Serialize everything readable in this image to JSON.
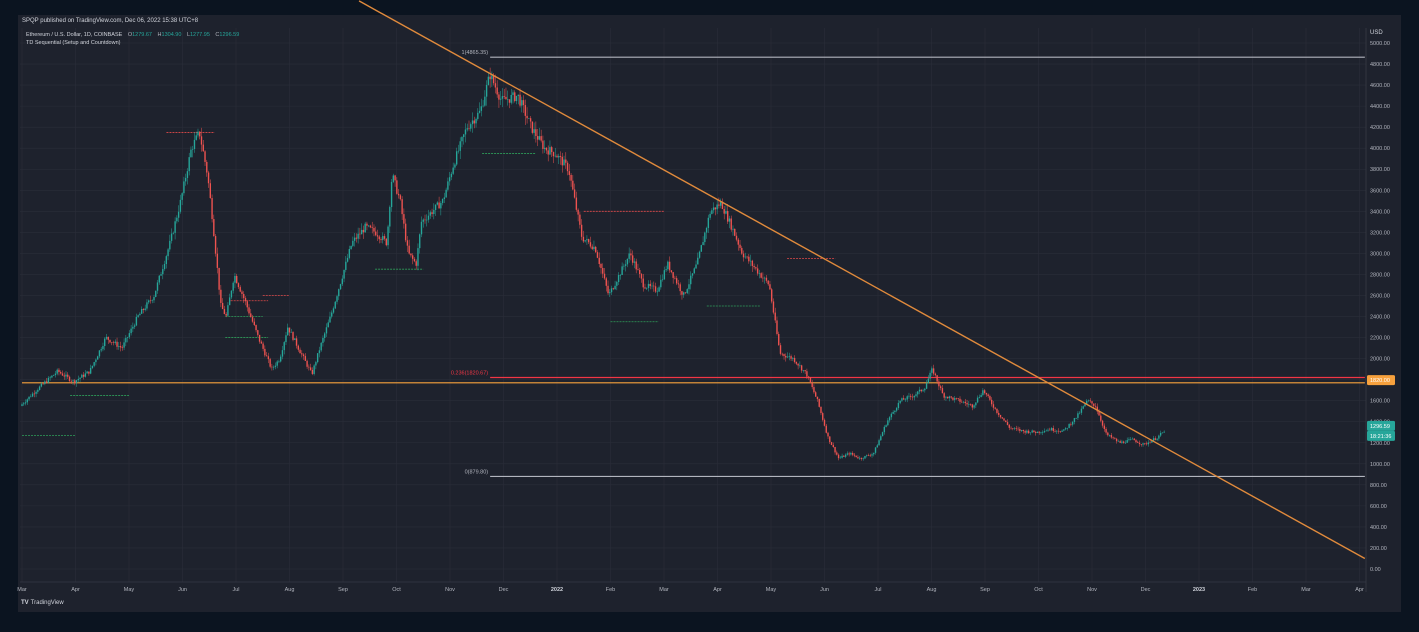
{
  "header": {
    "published": "SPQP published on TradingView.com, Dec 06, 2022 15:38 UTC+8",
    "symbol": "Ethereum / U.S. Dollar, 1D, COINBASE",
    "ohlc": [
      {
        "key": "O",
        "value": "1279.67"
      },
      {
        "key": "H",
        "value": "1304.90"
      },
      {
        "key": "L",
        "value": "1277.95"
      },
      {
        "key": "C",
        "value": "1296.59"
      }
    ],
    "indicator": "TD Sequential (Setup and Countdown)"
  },
  "footer": {
    "logo": "TV",
    "brand": "TradingView"
  },
  "chart_data": {
    "type": "candlestick",
    "currency": "USD",
    "ylim": [
      -100,
      5100
    ],
    "yticks": [
      "5000.00",
      "4800.00",
      "4600.00",
      "4400.00",
      "4200.00",
      "4000.00",
      "3800.00",
      "3600.00",
      "3400.00",
      "3200.00",
      "3000.00",
      "2800.00",
      "2600.00",
      "2400.00",
      "2200.00",
      "2000.00",
      "1800.00",
      "1600.00",
      "1400.00",
      "1200.00",
      "1000.00",
      "800.00",
      "600.00",
      "400.00",
      "200.00",
      "0.00"
    ],
    "xticks": [
      {
        "label": "Mar",
        "bold": false
      },
      {
        "label": "Apr",
        "bold": false
      },
      {
        "label": "May",
        "bold": false
      },
      {
        "label": "Jun",
        "bold": false
      },
      {
        "label": "Jul",
        "bold": false
      },
      {
        "label": "Aug",
        "bold": false
      },
      {
        "label": "Sep",
        "bold": false
      },
      {
        "label": "Oct",
        "bold": false
      },
      {
        "label": "Nov",
        "bold": false
      },
      {
        "label": "Dec",
        "bold": false
      },
      {
        "label": "2022",
        "bold": true
      },
      {
        "label": "Feb",
        "bold": false
      },
      {
        "label": "Mar",
        "bold": false
      },
      {
        "label": "Apr",
        "bold": false
      },
      {
        "label": "May",
        "bold": false
      },
      {
        "label": "Jun",
        "bold": false
      },
      {
        "label": "Jul",
        "bold": false
      },
      {
        "label": "Aug",
        "bold": false
      },
      {
        "label": "Sep",
        "bold": false
      },
      {
        "label": "Oct",
        "bold": false
      },
      {
        "label": "Nov",
        "bold": false
      },
      {
        "label": "Dec",
        "bold": false
      },
      {
        "label": "2023",
        "bold": true
      },
      {
        "label": "Feb",
        "bold": false
      },
      {
        "label": "Mar",
        "bold": false
      },
      {
        "label": "Apr",
        "bold": false
      }
    ],
    "price_path": [
      [
        0,
        1550
      ],
      [
        0.3,
        1700
      ],
      [
        0.7,
        1880
      ],
      [
        1.0,
        1780
      ],
      [
        1.3,
        1880
      ],
      [
        1.6,
        2200
      ],
      [
        1.9,
        2100
      ],
      [
        2.2,
        2400
      ],
      [
        2.5,
        2600
      ],
      [
        2.8,
        3100
      ],
      [
        3.0,
        3500
      ],
      [
        3.2,
        4000
      ],
      [
        3.35,
        4150
      ],
      [
        3.5,
        3750
      ],
      [
        3.6,
        3300
      ],
      [
        3.75,
        2500
      ],
      [
        3.85,
        2400
      ],
      [
        4.0,
        2800
      ],
      [
        4.2,
        2550
      ],
      [
        4.45,
        2200
      ],
      [
        4.7,
        1900
      ],
      [
        4.85,
        2000
      ],
      [
        5.0,
        2300
      ],
      [
        5.2,
        2100
      ],
      [
        5.45,
        1850
      ],
      [
        5.6,
        2100
      ],
      [
        5.8,
        2400
      ],
      [
        6.0,
        2750
      ],
      [
        6.2,
        3100
      ],
      [
        6.45,
        3250
      ],
      [
        6.65,
        3200
      ],
      [
        6.85,
        3100
      ],
      [
        6.95,
        3750
      ],
      [
        7.1,
        3500
      ],
      [
        7.25,
        3000
      ],
      [
        7.4,
        2900
      ],
      [
        7.5,
        3300
      ],
      [
        7.7,
        3400
      ],
      [
        7.9,
        3500
      ],
      [
        8.1,
        3850
      ],
      [
        8.35,
        4200
      ],
      [
        8.6,
        4350
      ],
      [
        8.78,
        4700
      ],
      [
        9.0,
        4450
      ],
      [
        9.3,
        4500
      ],
      [
        9.55,
        4200
      ],
      [
        9.8,
        4000
      ],
      [
        10.0,
        3950
      ],
      [
        10.25,
        3800
      ],
      [
        10.5,
        3150
      ],
      [
        10.75,
        3050
      ],
      [
        11.0,
        2600
      ],
      [
        11.2,
        2800
      ],
      [
        11.4,
        3000
      ],
      [
        11.65,
        2700
      ],
      [
        11.9,
        2650
      ],
      [
        12.1,
        2900
      ],
      [
        12.4,
        2600
      ],
      [
        12.65,
        2900
      ],
      [
        12.9,
        3400
      ],
      [
        13.1,
        3480
      ],
      [
        13.3,
        3250
      ],
      [
        13.5,
        3000
      ],
      [
        13.75,
        2850
      ],
      [
        14.0,
        2700
      ],
      [
        14.2,
        2050
      ],
      [
        14.45,
        2000
      ],
      [
        14.7,
        1850
      ],
      [
        14.9,
        1600
      ],
      [
        15.1,
        1250
      ],
      [
        15.3,
        1050
      ],
      [
        15.5,
        1100
      ],
      [
        15.7,
        1050
      ],
      [
        15.95,
        1100
      ],
      [
        16.2,
        1400
      ],
      [
        16.45,
        1600
      ],
      [
        16.7,
        1650
      ],
      [
        16.9,
        1720
      ],
      [
        17.05,
        1900
      ],
      [
        17.25,
        1650
      ],
      [
        17.55,
        1600
      ],
      [
        17.8,
        1550
      ],
      [
        18.0,
        1700
      ],
      [
        18.25,
        1500
      ],
      [
        18.5,
        1340
      ],
      [
        18.75,
        1310
      ],
      [
        19.0,
        1300
      ],
      [
        19.25,
        1330
      ],
      [
        19.5,
        1310
      ],
      [
        19.75,
        1450
      ],
      [
        19.95,
        1600
      ],
      [
        20.1,
        1550
      ],
      [
        20.3,
        1280
      ],
      [
        20.55,
        1200
      ],
      [
        20.8,
        1230
      ],
      [
        21.0,
        1180
      ],
      [
        21.25,
        1250
      ],
      [
        21.35,
        1296
      ]
    ],
    "trendline": {
      "from": {
        "x": 6.3,
        "y": 5400
      },
      "to": {
        "x": 25.1,
        "y": 100
      }
    },
    "hlines": [
      {
        "label": "1(4865.35)",
        "y": 4865,
        "x0": 8.75,
        "x1": 25.1,
        "color": "#b2b5be"
      },
      {
        "label": "0.236(1820.67)",
        "y": 1820,
        "x0": 8.75,
        "x1": 25.1,
        "color": "#f23645"
      },
      {
        "label": "",
        "y": 1770,
        "x0": 0,
        "x1": 25.1,
        "color": "#f7a13d"
      },
      {
        "label": "0(879.80)",
        "y": 880,
        "x0": 8.75,
        "x1": 25.1,
        "color": "#b2b5be"
      }
    ],
    "td_levels": [
      {
        "x0": 2.7,
        "x1": 3.6,
        "y": 4150,
        "color": "red"
      },
      {
        "x0": 3.8,
        "x1": 4.5,
        "y": 2400,
        "color": "green"
      },
      {
        "x0": 3.8,
        "x1": 4.6,
        "y": 2200,
        "color": "green"
      },
      {
        "x0": 3.9,
        "x1": 4.6,
        "y": 2550,
        "color": "red"
      },
      {
        "x0": 0.9,
        "x1": 2.0,
        "y": 1650,
        "color": "green"
      },
      {
        "x0": 0.0,
        "x1": 1.0,
        "y": 1270,
        "color": "green"
      },
      {
        "x0": 4.5,
        "x1": 5.0,
        "y": 2600,
        "color": "red"
      },
      {
        "x0": 6.6,
        "x1": 7.5,
        "y": 2850,
        "color": "green"
      },
      {
        "x0": 8.6,
        "x1": 9.6,
        "y": 3950,
        "color": "green"
      },
      {
        "x0": 10.5,
        "x1": 12.0,
        "y": 3400,
        "color": "red"
      },
      {
        "x0": 11.0,
        "x1": 11.9,
        "y": 2350,
        "color": "green"
      },
      {
        "x0": 12.8,
        "x1": 13.8,
        "y": 2500,
        "color": "green"
      },
      {
        "x0": 14.3,
        "x1": 15.2,
        "y": 2950,
        "color": "red"
      }
    ],
    "price_labels": [
      {
        "value": "1820.00",
        "y": 1795,
        "color": "#f7a13d"
      },
      {
        "value": "1296.59",
        "y": 1360,
        "color": "#26a69a"
      },
      {
        "value": "18:21:36",
        "y": 1265,
        "color": "#26a69a"
      }
    ]
  }
}
